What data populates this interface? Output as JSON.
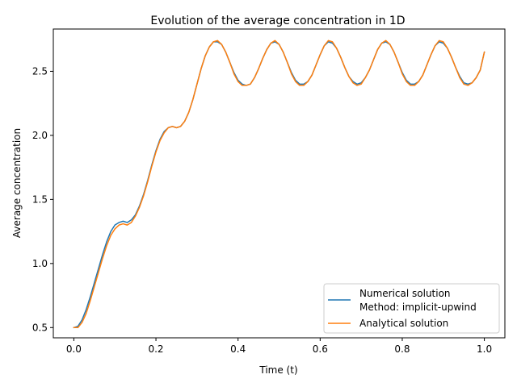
{
  "chart_data": {
    "type": "line",
    "title": "Evolution of the average concentration in 1D",
    "xlabel": "Time (t)",
    "ylabel": "Average concentration",
    "xlim": [
      -0.05,
      1.05
    ],
    "ylim": [
      0.42,
      2.83
    ],
    "xticks": [
      0.0,
      0.2,
      0.4,
      0.6,
      0.8,
      1.0
    ],
    "xtick_labels": [
      "0.0",
      "0.2",
      "0.4",
      "0.6",
      "0.8",
      "1.0"
    ],
    "yticks": [
      0.5,
      1.0,
      1.5,
      2.0,
      2.5
    ],
    "ytick_labels": [
      "0.5",
      "1.0",
      "1.5",
      "2.0",
      "2.5"
    ],
    "grid": false,
    "legend_position": "lower-right",
    "series": [
      {
        "name": "Numerical solution\nMethod: implicit-upwind",
        "color": "#1f77b4",
        "x": [
          0.0,
          0.01,
          0.02,
          0.03,
          0.04,
          0.05,
          0.06,
          0.07,
          0.08,
          0.09,
          0.1,
          0.11,
          0.12,
          0.13,
          0.14,
          0.15,
          0.16,
          0.17,
          0.18,
          0.19,
          0.2,
          0.21,
          0.22,
          0.23,
          0.24,
          0.25,
          0.26,
          0.27,
          0.28,
          0.29,
          0.3,
          0.31,
          0.32,
          0.33,
          0.34,
          0.35,
          0.36,
          0.37,
          0.38,
          0.39,
          0.4,
          0.41,
          0.42,
          0.43,
          0.44,
          0.45,
          0.46,
          0.47,
          0.48,
          0.49,
          0.5,
          0.51,
          0.52,
          0.53,
          0.54,
          0.55,
          0.56,
          0.57,
          0.58,
          0.59,
          0.6,
          0.61,
          0.62,
          0.63,
          0.64,
          0.65,
          0.66,
          0.67,
          0.68,
          0.69,
          0.7,
          0.71,
          0.72,
          0.73,
          0.74,
          0.75,
          0.76,
          0.77,
          0.78,
          0.79,
          0.8,
          0.81,
          0.82,
          0.83,
          0.84,
          0.85,
          0.86,
          0.87,
          0.88,
          0.89,
          0.9,
          0.91,
          0.92,
          0.93,
          0.94,
          0.95,
          0.96,
          0.97,
          0.98,
          0.99,
          1.0
        ],
        "y": [
          0.5,
          0.51,
          0.56,
          0.64,
          0.74,
          0.85,
          0.96,
          1.07,
          1.17,
          1.25,
          1.3,
          1.32,
          1.33,
          1.32,
          1.34,
          1.38,
          1.45,
          1.54,
          1.65,
          1.77,
          1.88,
          1.97,
          2.03,
          2.06,
          2.07,
          2.06,
          2.07,
          2.11,
          2.18,
          2.28,
          2.4,
          2.52,
          2.62,
          2.69,
          2.73,
          2.73,
          2.71,
          2.65,
          2.57,
          2.49,
          2.43,
          2.4,
          2.39,
          2.4,
          2.45,
          2.52,
          2.6,
          2.67,
          2.72,
          2.73,
          2.71,
          2.65,
          2.57,
          2.49,
          2.43,
          2.4,
          2.4,
          2.42,
          2.47,
          2.55,
          2.63,
          2.7,
          2.73,
          2.72,
          2.68,
          2.61,
          2.53,
          2.46,
          2.42,
          2.4,
          2.41,
          2.45,
          2.51,
          2.59,
          2.67,
          2.72,
          2.73,
          2.71,
          2.65,
          2.57,
          2.49,
          2.43,
          2.4,
          2.4,
          2.42,
          2.47,
          2.55,
          2.63,
          2.7,
          2.73,
          2.72,
          2.68,
          2.61,
          2.53,
          2.46,
          2.41,
          2.4,
          2.41,
          2.45,
          2.51,
          2.65
        ]
      },
      {
        "name": "Analytical solution",
        "color": "#ff7f0e",
        "x": [
          0.0,
          0.01,
          0.02,
          0.03,
          0.04,
          0.05,
          0.06,
          0.07,
          0.08,
          0.09,
          0.1,
          0.11,
          0.12,
          0.13,
          0.14,
          0.15,
          0.16,
          0.17,
          0.18,
          0.19,
          0.2,
          0.21,
          0.22,
          0.23,
          0.24,
          0.25,
          0.26,
          0.27,
          0.28,
          0.29,
          0.3,
          0.31,
          0.32,
          0.33,
          0.34,
          0.35,
          0.36,
          0.37,
          0.38,
          0.39,
          0.4,
          0.41,
          0.42,
          0.43,
          0.44,
          0.45,
          0.46,
          0.47,
          0.48,
          0.49,
          0.5,
          0.51,
          0.52,
          0.53,
          0.54,
          0.55,
          0.56,
          0.57,
          0.58,
          0.59,
          0.6,
          0.61,
          0.62,
          0.63,
          0.64,
          0.65,
          0.66,
          0.67,
          0.68,
          0.69,
          0.7,
          0.71,
          0.72,
          0.73,
          0.74,
          0.75,
          0.76,
          0.77,
          0.78,
          0.79,
          0.8,
          0.81,
          0.82,
          0.83,
          0.84,
          0.85,
          0.86,
          0.87,
          0.88,
          0.89,
          0.9,
          0.91,
          0.92,
          0.93,
          0.94,
          0.95,
          0.96,
          0.97,
          0.98,
          0.99,
          1.0
        ],
        "y": [
          0.5,
          0.5,
          0.54,
          0.61,
          0.71,
          0.82,
          0.93,
          1.04,
          1.14,
          1.22,
          1.27,
          1.3,
          1.31,
          1.3,
          1.32,
          1.37,
          1.44,
          1.53,
          1.64,
          1.76,
          1.87,
          1.96,
          2.02,
          2.06,
          2.07,
          2.06,
          2.07,
          2.11,
          2.18,
          2.28,
          2.4,
          2.52,
          2.62,
          2.69,
          2.73,
          2.74,
          2.71,
          2.65,
          2.57,
          2.48,
          2.42,
          2.39,
          2.39,
          2.4,
          2.45,
          2.52,
          2.6,
          2.67,
          2.72,
          2.74,
          2.71,
          2.65,
          2.57,
          2.48,
          2.42,
          2.39,
          2.39,
          2.42,
          2.47,
          2.55,
          2.63,
          2.7,
          2.74,
          2.73,
          2.68,
          2.61,
          2.53,
          2.46,
          2.41,
          2.39,
          2.4,
          2.45,
          2.51,
          2.59,
          2.67,
          2.72,
          2.74,
          2.71,
          2.65,
          2.57,
          2.48,
          2.42,
          2.39,
          2.39,
          2.42,
          2.47,
          2.55,
          2.63,
          2.7,
          2.74,
          2.73,
          2.68,
          2.61,
          2.53,
          2.45,
          2.4,
          2.39,
          2.41,
          2.45,
          2.51,
          2.65
        ]
      }
    ]
  }
}
